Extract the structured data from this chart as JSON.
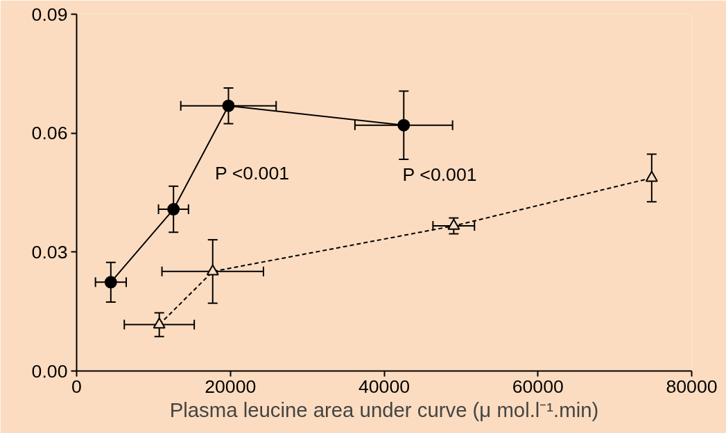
{
  "chart_data": {
    "type": "line",
    "xlabel": "Plasma leucine area under curve (μ mol.l⁻¹.min)",
    "xlim": [
      0,
      80000
    ],
    "xticks": [
      0,
      20000,
      40000,
      60000,
      80000
    ],
    "ylim": [
      0,
      0.09
    ],
    "yticks": [
      {
        "value": 0,
        "label": "0.00"
      },
      {
        "value": 0.03,
        "label": "0.03"
      },
      {
        "value": 0.06,
        "label": "0.06"
      },
      {
        "value": 0.09,
        "label": "0.09"
      }
    ],
    "grid": false,
    "series": [
      {
        "marker": "circle",
        "line_style": "solid",
        "color": "#000000",
        "x": [
          4450,
          12600,
          19750,
          42550
        ],
        "values": [
          0.0224,
          0.0408,
          0.0669,
          0.062
        ],
        "errors": [
          0.005,
          0.0058,
          0.0045,
          0.0086
        ],
        "xerrors": [
          2000,
          1950,
          6200,
          6350
        ]
      },
      {
        "marker": "triangle",
        "line_style": "dashed",
        "color": "#000000",
        "x": [
          10750,
          17700,
          49050,
          74800
        ],
        "values": [
          0.0117,
          0.0251,
          0.0366,
          0.0487
        ],
        "errors": [
          0.003,
          0.008,
          0.002,
          0.006
        ],
        "xerrors": [
          4550,
          6600,
          2700,
          null
        ]
      }
    ],
    "annotations": [
      "P <0.001",
      "P <0.001"
    ]
  }
}
